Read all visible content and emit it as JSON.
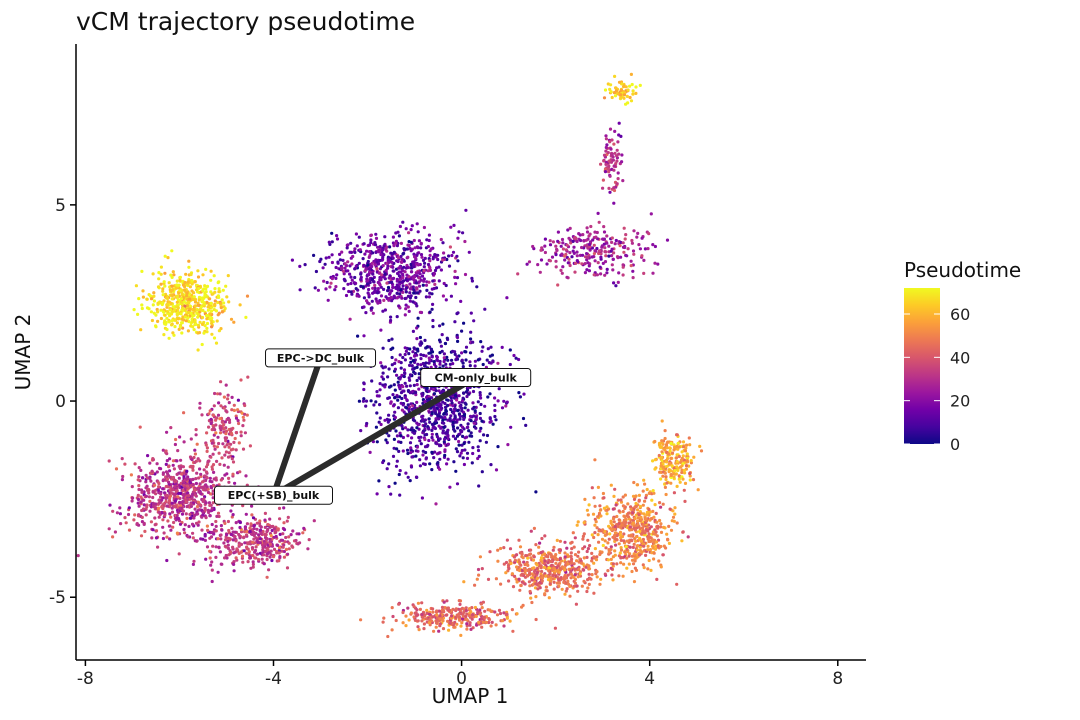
{
  "chart_data": {
    "type": "scatter",
    "title": "vCM trajectory pseudotime",
    "xlabel": "UMAP 1",
    "ylabel": "UMAP 2",
    "xlim": [
      -8.2,
      8.6
    ],
    "ylim": [
      -6.6,
      9.1
    ],
    "x_ticks": [
      -8,
      -4,
      0,
      4,
      8
    ],
    "y_ticks": [
      -5,
      0,
      5
    ],
    "x_tick_labels": [
      "-8",
      "-4",
      "0",
      "4",
      "8"
    ],
    "y_tick_labels": [
      "-5",
      "0",
      "5"
    ],
    "grid": false,
    "legend": {
      "title": "Pseudotime",
      "position": "right",
      "ticks": [
        0,
        20,
        40,
        60
      ],
      "tick_labels": [
        "0",
        "20",
        "40",
        "60"
      ],
      "range": [
        0,
        72
      ],
      "colormap": "plasma",
      "colors": [
        "#0d0887",
        "#46039f",
        "#7201a8",
        "#9c179e",
        "#bd3786",
        "#d8576b",
        "#ed7953",
        "#fb9f3a",
        "#fdca26",
        "#f0f921"
      ]
    },
    "clusters": [
      {
        "center": [
          -5.8,
          2.5
        ],
        "spread": [
          0.75,
          0.75
        ],
        "pseudotime": 68,
        "n": 520
      },
      {
        "center": [
          -6.0,
          -2.4
        ],
        "spread": [
          1.0,
          1.0
        ],
        "pseudotime": 32,
        "n": 700
      },
      {
        "center": [
          -4.4,
          -3.6
        ],
        "spread": [
          0.9,
          0.6
        ],
        "pseudotime": 33,
        "n": 350
      },
      {
        "center": [
          -1.5,
          3.3
        ],
        "spread": [
          1.2,
          0.9
        ],
        "pseudotime": 16,
        "n": 650
      },
      {
        "center": [
          -0.5,
          0.0
        ],
        "spread": [
          1.2,
          1.6
        ],
        "pseudotime": 9,
        "n": 1000
      },
      {
        "center": [
          2.8,
          3.8
        ],
        "spread": [
          1.1,
          0.6
        ],
        "pseudotime": 26,
        "n": 260
      },
      {
        "center": [
          3.2,
          6.2
        ],
        "spread": [
          0.2,
          0.8
        ],
        "pseudotime": 30,
        "n": 80
      },
      {
        "center": [
          3.4,
          7.9
        ],
        "spread": [
          0.3,
          0.25
        ],
        "pseudotime": 63,
        "n": 60
      },
      {
        "center": [
          1.8,
          -4.3
        ],
        "spread": [
          1.0,
          0.6
        ],
        "pseudotime": 46,
        "n": 450
      },
      {
        "center": [
          3.6,
          -3.3
        ],
        "spread": [
          0.8,
          0.9
        ],
        "pseudotime": 50,
        "n": 500
      },
      {
        "center": [
          4.5,
          -1.5
        ],
        "spread": [
          0.35,
          0.6
        ],
        "pseudotime": 57,
        "n": 200
      },
      {
        "center": [
          -0.2,
          -5.5
        ],
        "spread": [
          1.2,
          0.3
        ],
        "pseudotime": 44,
        "n": 280
      },
      {
        "center": [
          -5.1,
          -0.8
        ],
        "spread": [
          0.5,
          1.0
        ],
        "pseudotime": 36,
        "n": 160
      }
    ],
    "trajectory": {
      "nodes": [
        {
          "label": "EPC->DC_bulk",
          "x": -3.0,
          "y": 1.1
        },
        {
          "label": "CM-only_bulk",
          "x": 0.3,
          "y": 0.6
        },
        {
          "label": "EPC(+SB)_bulk",
          "x": -4.0,
          "y": -2.4
        }
      ],
      "edges": [
        [
          0,
          2
        ],
        [
          2,
          1
        ]
      ]
    }
  }
}
